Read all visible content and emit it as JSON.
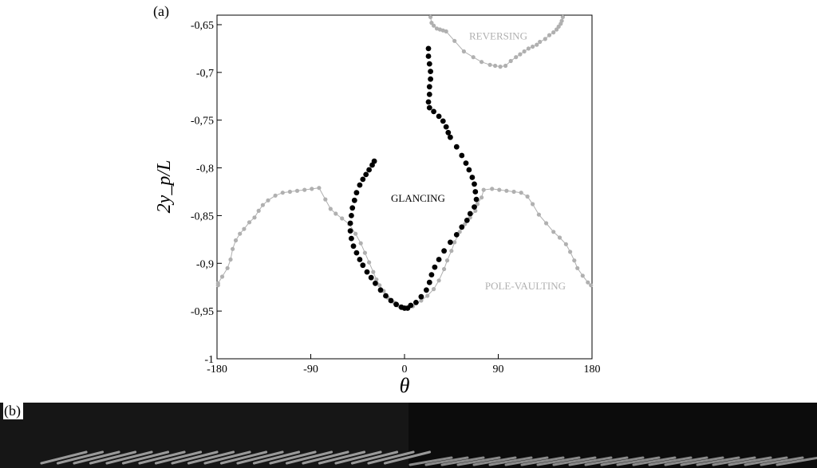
{
  "panels": {
    "a_label": "(a)",
    "b_label": "(b)"
  },
  "chart_data": {
    "type": "scatter",
    "xlabel": "θ",
    "ylabel": "2y_p/L",
    "xlim": [
      -180,
      180
    ],
    "ylim": [
      -1,
      -0.64
    ],
    "xticks": [
      -180,
      -90,
      0,
      90,
      180
    ],
    "xtick_labels": [
      "-180",
      "-90",
      "0",
      "90",
      "180"
    ],
    "yticks": [
      -1,
      -0.95,
      -0.9,
      -0.85,
      -0.8,
      -0.75,
      -0.7,
      -0.65
    ],
    "ytick_labels": [
      "-1",
      "-0,95",
      "-0,9",
      "-0,85",
      "-0,8",
      "-0,75",
      "-0,7",
      "-0,65"
    ],
    "grid": false,
    "annotations": [
      {
        "text": "REVERSING",
        "x": 90,
        "y": -0.662,
        "color": "#b0b0b0"
      },
      {
        "text": "GLANCING",
        "x": 13,
        "y": -0.832,
        "color": "#000000"
      },
      {
        "text": "POLE-VAULTING",
        "x": 116,
        "y": -0.924,
        "color": "#b0b0b0"
      }
    ],
    "series": [
      {
        "color": "#000000",
        "marker_size": 3.4,
        "line": false,
        "points": [
          [
            -29,
            -0.793
          ],
          [
            -31,
            -0.797
          ],
          [
            -34,
            -0.802
          ],
          [
            -37,
            -0.807
          ],
          [
            -40,
            -0.812
          ],
          [
            -43,
            -0.818
          ],
          [
            -46,
            -0.826
          ],
          [
            -48,
            -0.834
          ],
          [
            -50,
            -0.842
          ],
          [
            -51,
            -0.85
          ],
          [
            -52,
            -0.858
          ],
          [
            -52,
            -0.866
          ],
          [
            -51,
            -0.874
          ],
          [
            -49,
            -0.882
          ],
          [
            -46,
            -0.889
          ],
          [
            -43,
            -0.896
          ],
          [
            -40,
            -0.902
          ],
          [
            -36,
            -0.909
          ],
          [
            -32,
            -0.915
          ],
          [
            -28,
            -0.921
          ],
          [
            -23,
            -0.928
          ],
          [
            -18,
            -0.934
          ],
          [
            -13,
            -0.939
          ],
          [
            -8,
            -0.943
          ],
          [
            -3,
            -0.946
          ],
          [
            0,
            -0.947
          ],
          [
            23,
            -0.675
          ],
          [
            23,
            -0.683
          ],
          [
            24,
            -0.691
          ],
          [
            25,
            -0.699
          ],
          [
            25,
            -0.707
          ],
          [
            24,
            -0.715
          ],
          [
            24,
            -0.723
          ],
          [
            23,
            -0.731
          ],
          [
            24,
            -0.737
          ],
          [
            28,
            -0.741
          ],
          [
            33,
            -0.746
          ],
          [
            37,
            -0.751
          ],
          [
            40,
            -0.757
          ],
          [
            42,
            -0.763
          ],
          [
            44,
            -0.768
          ],
          [
            50,
            -0.778
          ],
          [
            55,
            -0.787
          ],
          [
            59,
            -0.795
          ],
          [
            62,
            -0.802
          ],
          [
            65,
            -0.81
          ],
          [
            67,
            -0.817
          ],
          [
            68,
            -0.825
          ],
          [
            69,
            -0.833
          ],
          [
            67,
            -0.841
          ],
          [
            63,
            -0.848
          ],
          [
            60,
            -0.855
          ],
          [
            55,
            -0.862
          ],
          [
            50,
            -0.87
          ],
          [
            44,
            -0.878
          ],
          [
            38,
            -0.887
          ],
          [
            33,
            -0.896
          ],
          [
            29,
            -0.904
          ],
          [
            26,
            -0.912
          ],
          [
            24,
            -0.92
          ],
          [
            21,
            -0.928
          ],
          [
            16,
            -0.935
          ],
          [
            11,
            -0.941
          ],
          [
            6,
            -0.944
          ],
          [
            3,
            -0.947
          ]
        ]
      },
      {
        "color": "#b0b0b0",
        "marker_size": 2.6,
        "line": true,
        "points": [
          [
            -179,
            -0.923
          ],
          [
            -179,
            -0.921
          ],
          [
            -175,
            -0.914
          ],
          [
            -170,
            -0.905
          ],
          [
            -167,
            -0.896
          ],
          [
            -165,
            -0.885
          ],
          [
            -162,
            -0.876
          ],
          [
            -158,
            -0.869
          ],
          [
            -154,
            -0.864
          ],
          [
            -149,
            -0.857
          ],
          [
            -144,
            -0.852
          ],
          [
            -140,
            -0.845
          ],
          [
            -136,
            -0.839
          ],
          [
            -131,
            -0.834
          ],
          [
            -124,
            -0.829
          ],
          [
            -117,
            -0.826
          ],
          [
            -110,
            -0.825
          ],
          [
            -103,
            -0.824
          ],
          [
            -96,
            -0.823
          ],
          [
            -89,
            -0.822
          ],
          [
            -82,
            -0.821
          ],
          [
            -76,
            -0.833
          ],
          [
            -71,
            -0.843
          ],
          [
            -66,
            -0.848
          ],
          [
            -60,
            -0.853
          ],
          [
            -53,
            -0.859
          ],
          [
            -47,
            -0.869
          ],
          [
            -42,
            -0.879
          ],
          [
            -38,
            -0.889
          ],
          [
            -34,
            -0.899
          ],
          [
            -30,
            -0.909
          ],
          [
            -27,
            -0.917
          ],
          [
            -24,
            -0.923
          ],
          [
            -20,
            -0.929
          ],
          [
            -16,
            -0.936
          ],
          [
            -10,
            -0.941
          ],
          [
            -5,
            -0.945
          ]
        ]
      },
      {
        "color": "#b0b0b0",
        "marker_size": 2.6,
        "line": true,
        "points": [
          [
            8,
            -0.945
          ],
          [
            16,
            -0.939
          ],
          [
            22,
            -0.934
          ],
          [
            28,
            -0.927
          ],
          [
            33,
            -0.918
          ],
          [
            38,
            -0.906
          ],
          [
            41,
            -0.897
          ],
          [
            45,
            -0.887
          ],
          [
            48,
            -0.878
          ],
          [
            53,
            -0.867
          ],
          [
            58,
            -0.859
          ],
          [
            63,
            -0.852
          ],
          [
            68,
            -0.845
          ],
          [
            70,
            -0.838
          ],
          [
            74,
            -0.831
          ],
          [
            76,
            -0.823
          ],
          [
            84,
            -0.822
          ],
          [
            91,
            -0.823
          ],
          [
            98,
            -0.824
          ],
          [
            105,
            -0.825
          ],
          [
            112,
            -0.826
          ],
          [
            118,
            -0.83
          ],
          [
            123,
            -0.838
          ],
          [
            129,
            -0.849
          ],
          [
            136,
            -0.858
          ],
          [
            143,
            -0.867
          ],
          [
            149,
            -0.873
          ],
          [
            155,
            -0.88
          ],
          [
            159,
            -0.888
          ],
          [
            163,
            -0.897
          ],
          [
            166,
            -0.905
          ],
          [
            171,
            -0.913
          ],
          [
            176,
            -0.92
          ],
          [
            179,
            -0.923
          ]
        ]
      },
      {
        "color": "#b0b0b0",
        "marker_size": 2.6,
        "line": true,
        "points": [
          [
            25,
            -0.642
          ],
          [
            26,
            -0.648
          ],
          [
            28,
            -0.651
          ],
          [
            31,
            -0.654
          ],
          [
            34,
            -0.655
          ],
          [
            37,
            -0.656
          ],
          [
            40,
            -0.657
          ],
          [
            48,
            -0.667
          ],
          [
            57,
            -0.678
          ],
          [
            66,
            -0.684
          ],
          [
            74,
            -0.689
          ],
          [
            82,
            -0.692
          ],
          [
            87,
            -0.693
          ],
          [
            92,
            -0.694
          ],
          [
            97,
            -0.693
          ],
          [
            102,
            -0.688
          ],
          [
            107,
            -0.684
          ],
          [
            111,
            -0.681
          ],
          [
            115,
            -0.678
          ],
          [
            119,
            -0.675
          ],
          [
            123,
            -0.673
          ],
          [
            127,
            -0.671
          ],
          [
            130,
            -0.668
          ],
          [
            135,
            -0.665
          ],
          [
            139,
            -0.661
          ],
          [
            143,
            -0.658
          ],
          [
            146,
            -0.655
          ],
          [
            148,
            -0.652
          ],
          [
            150,
            -0.649
          ],
          [
            151,
            -0.646
          ],
          [
            152,
            -0.642
          ]
        ]
      }
    ]
  }
}
